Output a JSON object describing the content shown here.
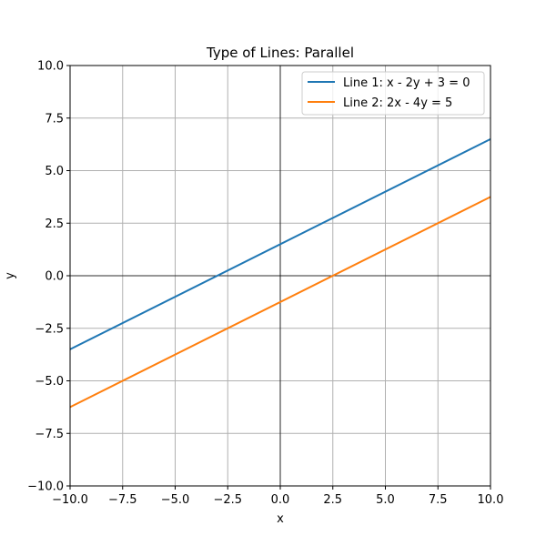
{
  "chart_data": {
    "type": "line",
    "title": "Type of Lines: Parallel",
    "xlabel": "x",
    "ylabel": "y",
    "xlim": [
      -10,
      10
    ],
    "ylim": [
      -10,
      10
    ],
    "xticks": [
      -10,
      -7.5,
      -5,
      -2.5,
      0,
      2.5,
      5,
      7.5,
      10
    ],
    "yticks": [
      -10,
      -7.5,
      -5,
      -2.5,
      0,
      2.5,
      5,
      7.5,
      10
    ],
    "xtick_labels": [
      "−10.0",
      "−7.5",
      "−5.0",
      "−2.5",
      "0.0",
      "2.5",
      "5.0",
      "7.5",
      "10.0"
    ],
    "ytick_labels": [
      "−10.0",
      "−7.5",
      "−5.0",
      "−2.5",
      "0.0",
      "2.5",
      "5.0",
      "7.5",
      "10.0"
    ],
    "grid": true,
    "axis_lines_at_zero": true,
    "legend_position": "top-right",
    "series": [
      {
        "name": "Line 1: x - 2y + 3 = 0",
        "color": "#1f77b4",
        "x": [
          -10,
          10
        ],
        "y": [
          -3.5,
          6.5
        ]
      },
      {
        "name": "Line 2: 2x - 4y = 5",
        "color": "#ff7f0e",
        "x": [
          -10,
          10
        ],
        "y": [
          -6.25,
          3.75
        ]
      }
    ]
  }
}
